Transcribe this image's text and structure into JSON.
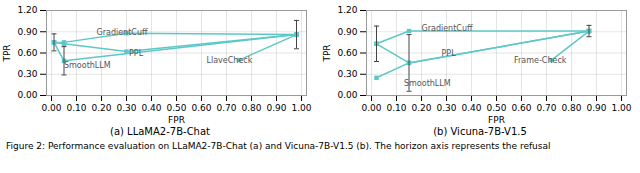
{
  "chart_data": [
    {
      "type": "line",
      "subtitle": "(a) LLaMA2-7B-Chat",
      "xlabel": "FPR",
      "ylabel": "TPR",
      "xlim": [
        -0.02,
        1.02
      ],
      "ylim": [
        0.0,
        1.2
      ],
      "xticks": [
        {
          "value": 0.0,
          "label": "0.00"
        },
        {
          "value": 0.1,
          "label": "0.10"
        },
        {
          "value": 0.2,
          "label": "0.20"
        },
        {
          "value": 0.3,
          "label": "0.30"
        },
        {
          "value": 0.4,
          "label": "0.40"
        },
        {
          "value": 0.5,
          "label": "0.50"
        },
        {
          "value": 0.6,
          "label": "0.60"
        },
        {
          "value": 0.7,
          "label": "0.70"
        },
        {
          "value": 0.8,
          "label": "0.80"
        },
        {
          "value": 0.9,
          "label": "0.90"
        },
        {
          "value": 1.0,
          "label": "1.00"
        }
      ],
      "yticks": [
        {
          "value": 0.0,
          "label": "0.00"
        },
        {
          "value": 0.3,
          "label": "0.30"
        },
        {
          "value": 0.6,
          "label": "0.60"
        },
        {
          "value": 0.9,
          "label": "0.90"
        },
        {
          "value": 1.2,
          "label": "1.20"
        }
      ],
      "grid": true,
      "color": "#5ec8c8",
      "marker": "square",
      "series": [
        {
          "name": "GradientCuff",
          "x": [
            0.01,
            0.05,
            0.3,
            0.98
          ],
          "values": [
            0.75,
            0.75,
            0.88,
            0.86
          ],
          "errors": [
            0.12,
            0.0,
            0.0,
            0.2
          ]
        },
        {
          "name": "PPL",
          "x": [
            0.01,
            0.05,
            0.3,
            0.98
          ],
          "values": [
            0.75,
            0.73,
            0.62,
            0.86
          ],
          "errors": [
            0.0,
            0.0,
            0.0,
            0.0
          ]
        },
        {
          "name": "SmoothLLM",
          "x": [
            0.01,
            0.05,
            0.98
          ],
          "values": [
            0.75,
            0.49,
            0.86
          ],
          "errors": [
            0.0,
            0.2,
            0.0
          ]
        },
        {
          "name": "LlaveCheck",
          "x": [
            0.75,
            0.98
          ],
          "values": [
            0.5,
            0.86
          ],
          "errors": [
            0.0,
            0.0
          ]
        }
      ],
      "annotations": [
        {
          "text": "GradientCuff",
          "x": 0.18,
          "y": 0.89
        },
        {
          "text": "PPL",
          "x": 0.31,
          "y": 0.59
        },
        {
          "text": "SmoothLLM",
          "x": 0.05,
          "y": 0.42
        },
        {
          "text": "LlaveCheck",
          "x": 0.62,
          "y": 0.49
        }
      ]
    },
    {
      "type": "line",
      "subtitle": "(b) Vicuna-7B-V1.5",
      "xlabel": "FPR",
      "ylabel": "TPR",
      "xlim": [
        -0.02,
        1.02
      ],
      "ylim": [
        0.0,
        1.2
      ],
      "xticks": [
        {
          "value": 0.0,
          "label": "0.00"
        },
        {
          "value": 0.1,
          "label": "0.10"
        },
        {
          "value": 0.2,
          "label": "0.20"
        },
        {
          "value": 0.3,
          "label": "0.30"
        },
        {
          "value": 0.4,
          "label": "0.40"
        },
        {
          "value": 0.5,
          "label": "0.50"
        },
        {
          "value": 0.6,
          "label": "0.60"
        },
        {
          "value": 0.7,
          "label": "0.70"
        },
        {
          "value": 0.8,
          "label": "0.80"
        },
        {
          "value": 0.9,
          "label": "0.90"
        },
        {
          "value": 1.0,
          "label": "1.00"
        }
      ],
      "yticks": [
        {
          "value": 0.0,
          "label": "0.00"
        },
        {
          "value": 0.3,
          "label": "0.30"
        },
        {
          "value": 0.6,
          "label": "0.60"
        },
        {
          "value": 0.9,
          "label": "0.90"
        },
        {
          "value": 1.2,
          "label": "1.20"
        }
      ],
      "grid": true,
      "color": "#5ec8c8",
      "marker": "square",
      "series": [
        {
          "name": "GradientCuff",
          "x": [
            0.02,
            0.15,
            0.87
          ],
          "values": [
            0.73,
            0.91,
            0.91
          ],
          "errors": [
            0.25,
            0.0,
            0.08
          ]
        },
        {
          "name": "PPL",
          "x": [
            0.02,
            0.15,
            0.87
          ],
          "values": [
            0.73,
            0.46,
            0.91
          ],
          "errors": [
            0.0,
            0.0,
            0.0
          ]
        },
        {
          "name": "SmoothLLM",
          "x": [
            0.02,
            0.15,
            0.87
          ],
          "values": [
            0.25,
            0.46,
            0.91
          ],
          "errors": [
            0.0,
            0.4,
            0.0
          ]
        },
        {
          "name": "Frame-Check",
          "x": [
            0.72,
            0.87
          ],
          "values": [
            0.5,
            0.91
          ],
          "errors": [
            0.0,
            0.0
          ]
        }
      ],
      "annotations": [
        {
          "text": "GradientCuff",
          "x": 0.2,
          "y": 0.94
        },
        {
          "text": "PPL",
          "x": 0.28,
          "y": 0.6
        },
        {
          "text": "SmoothLLM",
          "x": 0.13,
          "y": 0.17
        },
        {
          "text": "Frame-Check",
          "x": 0.57,
          "y": 0.49
        }
      ]
    }
  ],
  "caption": "Figure 2: Performance evaluation on LLaMA2-7B-Chat (a) and Vicuna-7B-V1.5 (b). The horizon axis represents the refusal"
}
